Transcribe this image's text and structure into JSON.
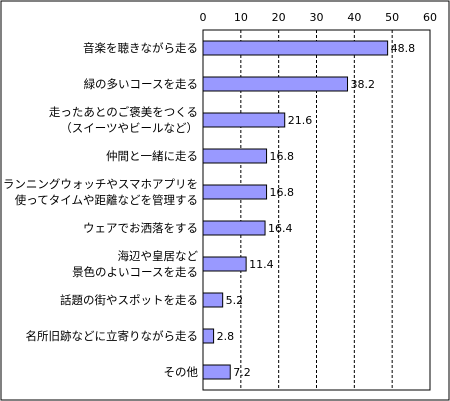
{
  "chart_data": {
    "type": "bar",
    "orientation": "horizontal",
    "title": "",
    "xlabel": "",
    "ylabel": "",
    "xlim": [
      0,
      60
    ],
    "xticks": [
      0,
      10,
      20,
      30,
      40,
      50,
      60
    ],
    "grid": "vertical dashed",
    "categories": [
      [
        "音楽を聴きながら走る"
      ],
      [
        "緑の多いコースを走る"
      ],
      [
        "走ったあとのご褒美をつくる",
        "（スイーツやビールなど）"
      ],
      [
        "仲間と一緒に走る"
      ],
      [
        "ランニングウォッチやスマホアプリを",
        "使ってタイムや距離などを管理する"
      ],
      [
        "ウェアでお洒落をする"
      ],
      [
        "海辺や皇居など",
        "景色のよいコースを走る"
      ],
      [
        "話題の街やスポットを走る"
      ],
      [
        "名所旧跡などに立寄りながら走る"
      ],
      [
        "その他"
      ]
    ],
    "values": [
      48.8,
      38.2,
      21.6,
      16.8,
      16.8,
      16.4,
      11.4,
      5.2,
      2.8,
      7.2
    ],
    "value_labels": [
      "48.8",
      "38.2",
      "21.6",
      "16.8",
      "16.8",
      "16.4",
      "11.4",
      "5.2",
      "2.8",
      "7.2"
    ],
    "colors": {
      "bar_fill": "#9999ff",
      "bar_stroke": "#000000",
      "frame": "#000000",
      "grid": "#000000"
    }
  }
}
